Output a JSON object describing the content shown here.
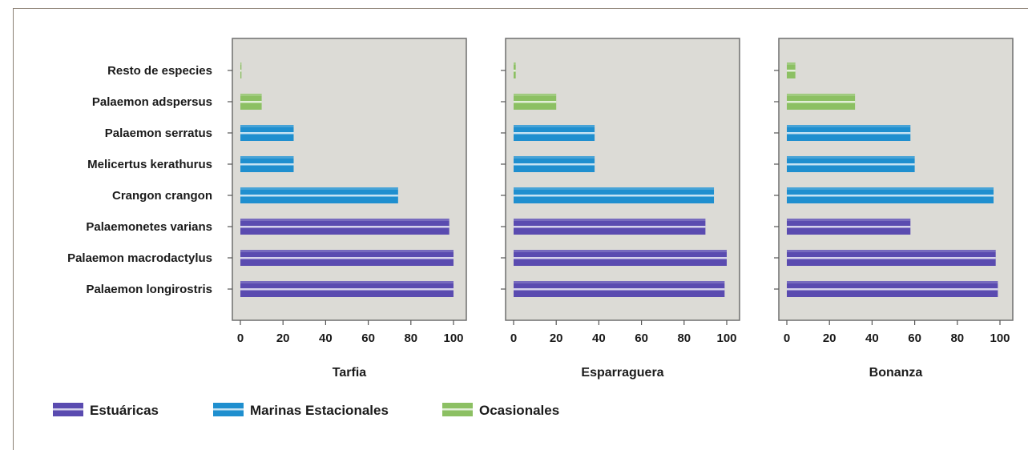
{
  "chart_data": {
    "type": "bar",
    "orientation": "horizontal",
    "categories": [
      "Resto de especies",
      "Palaemon adspersus",
      "Palaemon serratus",
      "Melicertus kerathurus",
      "Crangon crangon",
      "Palaemonetes varians",
      "Palaemon macrodactylus",
      "Palaemon longirostris"
    ],
    "category_group": [
      "Ocasionales",
      "Ocasionales",
      "Marinas Estacionales",
      "Marinas Estacionales",
      "Marinas Estacionales",
      "Estuáricas",
      "Estuáricas",
      "Estuáricas"
    ],
    "xlim": [
      0,
      100
    ],
    "xticks": [
      "0",
      "20",
      "40",
      "60",
      "80",
      "100"
    ],
    "grid": false,
    "legend_position": "bottom-left",
    "legend": [
      {
        "name": "Estuáricas",
        "color": "#5a4bb0"
      },
      {
        "name": "Marinas Estacionales",
        "color": "#1f8fcf"
      },
      {
        "name": "Ocasionales",
        "color": "#8cc063"
      }
    ],
    "panels": [
      {
        "title": "Tarfia",
        "values": [
          0.5,
          10,
          25,
          25,
          74,
          98,
          100,
          100
        ]
      },
      {
        "title": "Esparraguera",
        "values": [
          1,
          20,
          38,
          38,
          94,
          90,
          100,
          99
        ]
      },
      {
        "title": "Bonanza",
        "values": [
          4,
          32,
          58,
          60,
          97,
          58,
          98,
          99
        ]
      }
    ]
  }
}
